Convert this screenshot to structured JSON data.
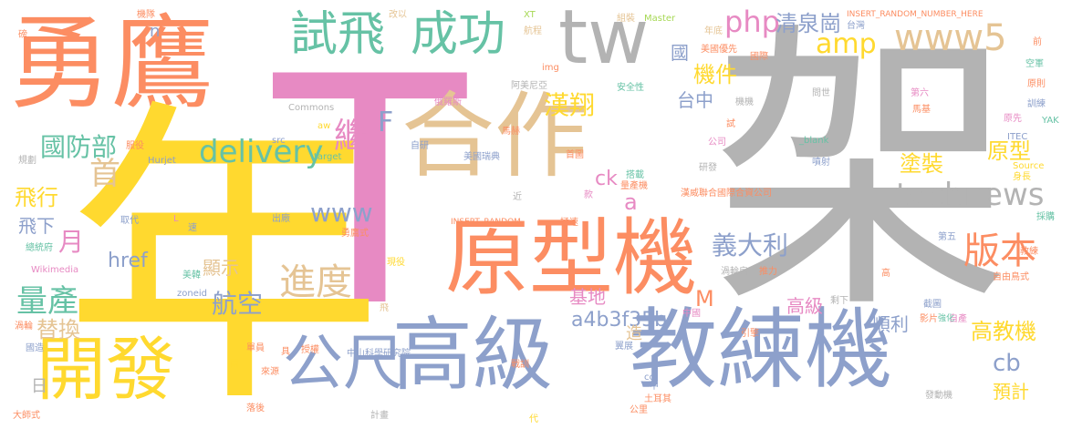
{
  "palette": {
    "orange": "#fc8d62",
    "gray": "#b3b3b3",
    "pink": "#e78ac3",
    "yellow": "#ffd92f",
    "blue": "#8da0cb",
    "green": "#66c2a5",
    "tan": "#e5c494",
    "lime": "#a6d854"
  },
  "words": [
    {
      "t": "勇鷹",
      "c": "orange"
    },
    {
      "t": "T",
      "c": "pink"
    },
    {
      "t": "架",
      "c": "gray"
    },
    {
      "t": "年",
      "c": "yellow"
    },
    {
      "t": "合作",
      "c": "tan"
    },
    {
      "t": "tw",
      "c": "gray"
    },
    {
      "t": "試飛",
      "c": "green"
    },
    {
      "t": "成功",
      "c": "green"
    },
    {
      "t": "原型機",
      "c": "orange"
    },
    {
      "t": "高級",
      "c": "blue"
    },
    {
      "t": "教練機",
      "c": "blue"
    },
    {
      "t": "開發",
      "c": "yellow"
    },
    {
      "t": "公尺",
      "c": "blue"
    },
    {
      "t": "www5",
      "c": "tan"
    },
    {
      "t": "php",
      "c": "pink"
    },
    {
      "t": "amp",
      "c": "yellow"
    },
    {
      "t": "technews",
      "c": "gray"
    },
    {
      "t": "delivery",
      "c": "green"
    },
    {
      "t": "國防部",
      "c": "green"
    },
    {
      "t": "首",
      "c": "tan"
    },
    {
      "t": "繼",
      "c": "pink"
    },
    {
      "t": "F",
      "c": "blue"
    },
    {
      "t": "量產",
      "c": "green"
    },
    {
      "t": "飛行",
      "c": "yellow"
    },
    {
      "t": "飛下",
      "c": "blue"
    },
    {
      "t": "月",
      "c": "pink"
    },
    {
      "t": "www",
      "c": "blue"
    },
    {
      "t": "進度",
      "c": "tan"
    },
    {
      "t": "航空",
      "c": "blue"
    },
    {
      "t": "替換",
      "c": "tan"
    },
    {
      "t": "漢翔",
      "c": "yellow"
    },
    {
      "t": "清泉崗",
      "c": "blue"
    },
    {
      "t": "機件",
      "c": "yellow"
    },
    {
      "t": "台中",
      "c": "blue"
    },
    {
      "t": "國",
      "c": "blue"
    },
    {
      "t": "義大利",
      "c": "blue"
    },
    {
      "t": "版本",
      "c": "orange"
    },
    {
      "t": "塗裝",
      "c": "yellow"
    },
    {
      "t": "原型",
      "c": "yellow"
    },
    {
      "t": "a4b3f35b",
      "c": "blue"
    },
    {
      "t": "高教機",
      "c": "yellow"
    },
    {
      "t": "順利",
      "c": "blue"
    },
    {
      "t": "cb",
      "c": "blue"
    },
    {
      "t": "預計",
      "c": "yellow"
    },
    {
      "t": "高級",
      "c": "pink"
    },
    {
      "t": "M",
      "c": "orange"
    },
    {
      "t": "基地",
      "c": "pink"
    },
    {
      "t": "href",
      "c": "blue"
    },
    {
      "t": "ck",
      "c": "pink"
    },
    {
      "t": "a",
      "c": "pink"
    },
    {
      "t": "顯示",
      "c": "tan"
    },
    {
      "t": "n",
      "c": "blue"
    },
    {
      "t": "造",
      "c": "tan"
    },
    {
      "t": "日",
      "c": "gray"
    },
    {
      "t": "機隊",
      "c": "orange"
    },
    {
      "t": "改以",
      "c": "tan"
    },
    {
      "t": "XT",
      "c": "lime"
    },
    {
      "t": "航程",
      "c": "tan"
    },
    {
      "t": "組裝",
      "c": "tan"
    },
    {
      "t": "Master",
      "c": "lime"
    },
    {
      "t": "年底",
      "c": "tan"
    },
    {
      "t": "INSERT_RANDOM_NUMBER_HERE",
      "c": "orange"
    },
    {
      "t": "台灣",
      "c": "blue"
    },
    {
      "t": "前",
      "c": "orange"
    },
    {
      "t": "空軍",
      "c": "green"
    },
    {
      "t": "原則",
      "c": "orange"
    },
    {
      "t": "訓練",
      "c": "blue"
    },
    {
      "t": "YAK",
      "c": "green"
    },
    {
      "t": "ITEC",
      "c": "blue"
    },
    {
      "t": "Source",
      "c": "yellow"
    },
    {
      "t": "身長",
      "c": "yellow"
    },
    {
      "t": "採購",
      "c": "green"
    },
    {
      "t": "教練",
      "c": "orange"
    },
    {
      "t": "自由鳥式",
      "c": "orange"
    },
    {
      "t": "自產",
      "c": "pink"
    },
    {
      "t": "強化",
      "c": "green"
    },
    {
      "t": "美國優先",
      "c": "orange"
    },
    {
      "t": "國際",
      "c": "orange"
    },
    {
      "t": "問世",
      "c": "gray"
    },
    {
      "t": "第六",
      "c": "pink"
    },
    {
      "t": "馬基",
      "c": "orange"
    },
    {
      "t": "原先",
      "c": "pink"
    },
    {
      "t": "機機",
      "c": "gray"
    },
    {
      "t": "安全性",
      "c": "green"
    },
    {
      "t": "阿美尼亞",
      "c": "gray"
    },
    {
      "t": "img",
      "c": "orange"
    },
    {
      "t": "俄羅斯",
      "c": "pink"
    },
    {
      "t": "馬赫",
      "c": "orange"
    },
    {
      "t": "公司",
      "c": "pink"
    },
    {
      "t": "研發",
      "c": "gray"
    },
    {
      "t": "_blank",
      "c": "green"
    },
    {
      "t": "噴射",
      "c": "blue"
    },
    {
      "t": "漢威聯合國際合資公司",
      "c": "orange"
    },
    {
      "t": "美國瑞典",
      "c": "blue"
    },
    {
      "t": "搭載",
      "c": "green"
    },
    {
      "t": "量產機",
      "c": "orange"
    },
    {
      "t": "首圖",
      "c": "orange"
    },
    {
      "t": "款",
      "c": "pink"
    },
    {
      "t": "近",
      "c": "gray"
    },
    {
      "t": "INSERT_RANDOM",
      "c": "orange"
    },
    {
      "t": "極速",
      "c": "orange"
    },
    {
      "t": "Commons",
      "c": "gray"
    },
    {
      "t": "src",
      "c": "blue"
    },
    {
      "t": "aw",
      "c": "yellow"
    },
    {
      "t": "自研",
      "c": "blue"
    },
    {
      "t": "target",
      "c": "green"
    },
    {
      "t": "Hurjet",
      "c": "blue"
    },
    {
      "t": "規劃",
      "c": "gray"
    },
    {
      "t": "服役",
      "c": "orange"
    },
    {
      "t": "試",
      "c": "orange"
    },
    {
      "t": "取代",
      "c": "blue"
    },
    {
      "t": "L",
      "c": "pink"
    },
    {
      "t": "速",
      "c": "blue"
    },
    {
      "t": "出廠",
      "c": "blue"
    },
    {
      "t": "勇鷹式",
      "c": "orange"
    },
    {
      "t": "總統府",
      "c": "green"
    },
    {
      "t": "Wikimedia",
      "c": "pink"
    },
    {
      "t": "美韓",
      "c": "green"
    },
    {
      "t": "zoneid",
      "c": "blue"
    },
    {
      "t": "現役",
      "c": "yellow"
    },
    {
      "t": "推力",
      "c": "orange"
    },
    {
      "t": "渦輪扇",
      "c": "gray"
    },
    {
      "t": "高",
      "c": "orange"
    },
    {
      "t": "第五",
      "c": "blue"
    },
    {
      "t": "剩下",
      "c": "gray"
    },
    {
      "t": "截圖",
      "c": "blue"
    },
    {
      "t": "影片",
      "c": "orange"
    },
    {
      "t": "中國",
      "c": "pink"
    },
    {
      "t": "翼展",
      "c": "blue"
    },
    {
      "t": "引擎",
      "c": "orange"
    },
    {
      "t": "具",
      "c": "orange"
    },
    {
      "t": "授權",
      "c": "orange"
    },
    {
      "t": "中山科學研究院",
      "c": "blue"
    },
    {
      "t": "單員",
      "c": "orange"
    },
    {
      "t": "國造",
      "c": "blue"
    },
    {
      "t": "飛",
      "c": "tan"
    },
    {
      "t": "渦輪",
      "c": "orange"
    },
    {
      "t": "來源",
      "c": "orange"
    },
    {
      "t": "兩",
      "c": "yellow"
    },
    {
      "t": "戰訓",
      "c": "orange"
    },
    {
      "t": "cc",
      "c": "blue"
    },
    {
      "t": "土耳其",
      "c": "orange"
    },
    {
      "t": "中",
      "c": "blue"
    },
    {
      "t": "發動機",
      "c": "gray"
    },
    {
      "t": "大師式",
      "c": "orange"
    },
    {
      "t": "落後",
      "c": "orange"
    },
    {
      "t": "計畫",
      "c": "gray"
    },
    {
      "t": "代",
      "c": "yellow"
    },
    {
      "t": "公里",
      "c": "orange"
    },
    {
      "t": "磅",
      "c": "orange"
    }
  ]
}
